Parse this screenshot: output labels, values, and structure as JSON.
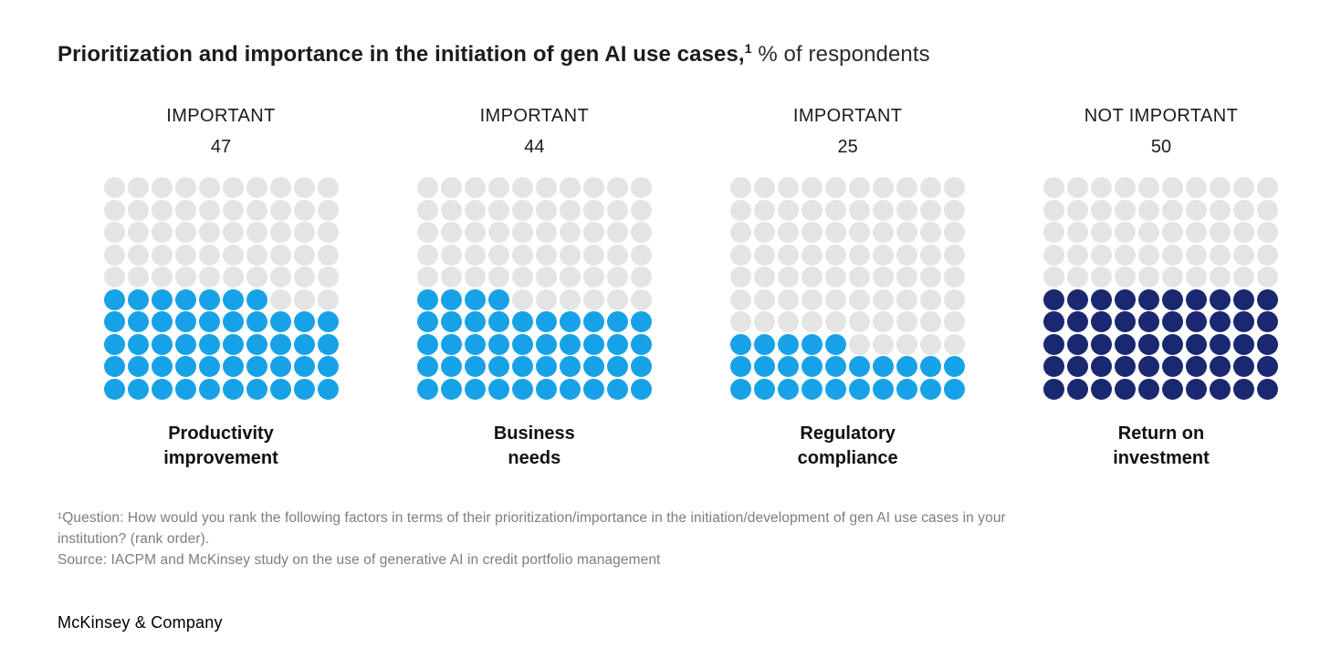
{
  "title": {
    "bold": "Prioritization and importance in the initiation of gen AI use cases,",
    "superscript": "1",
    "regular": " % of respondents"
  },
  "chart_data": {
    "type": "waffle",
    "title": "Prioritization and importance in the initiation of gen AI use cases",
    "unit": "% of respondents",
    "grid": {
      "rows": 10,
      "cols": 10,
      "dots_per_chart": 100
    },
    "legend_position": "none",
    "fill_rule": "filled dots accumulate from bottom-left; remainder dots sit left-aligned in the next row up",
    "colors": {
      "important_fill": "#17A2E8",
      "not_important_fill": "#1A2871",
      "empty_dot": "#E4E4E4"
    },
    "categories": [
      "Productivity improvement",
      "Business needs",
      "Regulatory compliance",
      "Return on investment"
    ],
    "values": [
      47,
      44,
      25,
      50
    ],
    "charts": [
      {
        "header": "IMPORTANT",
        "value": "47",
        "value_num": 47,
        "category": "Productivity improvement",
        "label_lines": [
          "Productivity",
          "improvement"
        ],
        "fill_color": "#17A2E8"
      },
      {
        "header": "IMPORTANT",
        "value": "44",
        "value_num": 44,
        "category": "Business needs",
        "label_lines": [
          "Business",
          "needs"
        ],
        "fill_color": "#17A2E8"
      },
      {
        "header": "IMPORTANT",
        "value": "25",
        "value_num": 25,
        "category": "Regulatory compliance",
        "label_lines": [
          "Regulatory",
          "compliance"
        ],
        "fill_color": "#17A2E8"
      },
      {
        "header": "NOT IMPORTANT",
        "value": "50",
        "value_num": 50,
        "category": "Return on investment",
        "label_lines": [
          "Return on",
          "investment"
        ],
        "fill_color": "#1A2871"
      }
    ]
  },
  "footnote": {
    "line1": "¹Question: How would you rank the following factors in terms of their prioritization/importance in the initiation/development of gen AI use cases in your",
    "line2": "institution? (rank order).",
    "line3": "Source: IACPM and McKinsey study on the use of generative AI in credit portfolio management"
  },
  "footer": {
    "wordmark": "McKinsey & Company"
  }
}
